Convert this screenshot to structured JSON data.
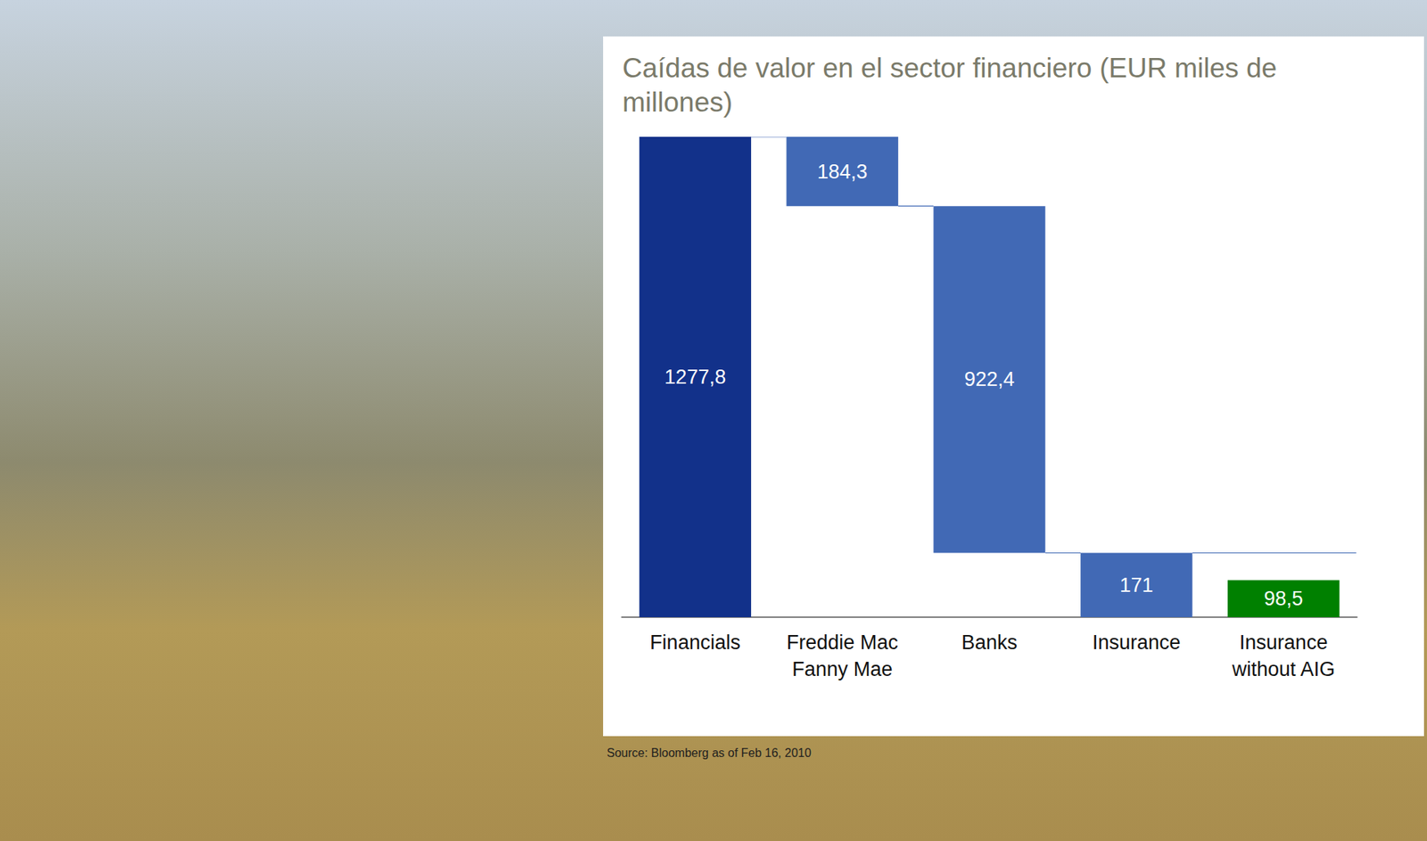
{
  "chart_data": {
    "type": "waterfall",
    "title": "Caídas de valor en el sector financiero (EUR miles de millones)",
    "source": "Source: Bloomberg as of Feb 16, 2010",
    "categories": [
      "Financials",
      "Freddie Mac Fanny Mae",
      "Banks",
      "Insurance",
      "Insurance without AIG"
    ],
    "values": [
      1277.8,
      184.3,
      922.4,
      171,
      98.5
    ],
    "value_labels": [
      "1277,8",
      "184,3",
      "922,4",
      "171",
      "98,5"
    ],
    "colors": [
      "#12318a",
      "#4169b5",
      "#4169b5",
      "#4169b5",
      "#008000"
    ],
    "ylim": [
      0,
      1277.8
    ],
    "data_labels": true,
    "tick_labels": "x",
    "grid": false
  }
}
